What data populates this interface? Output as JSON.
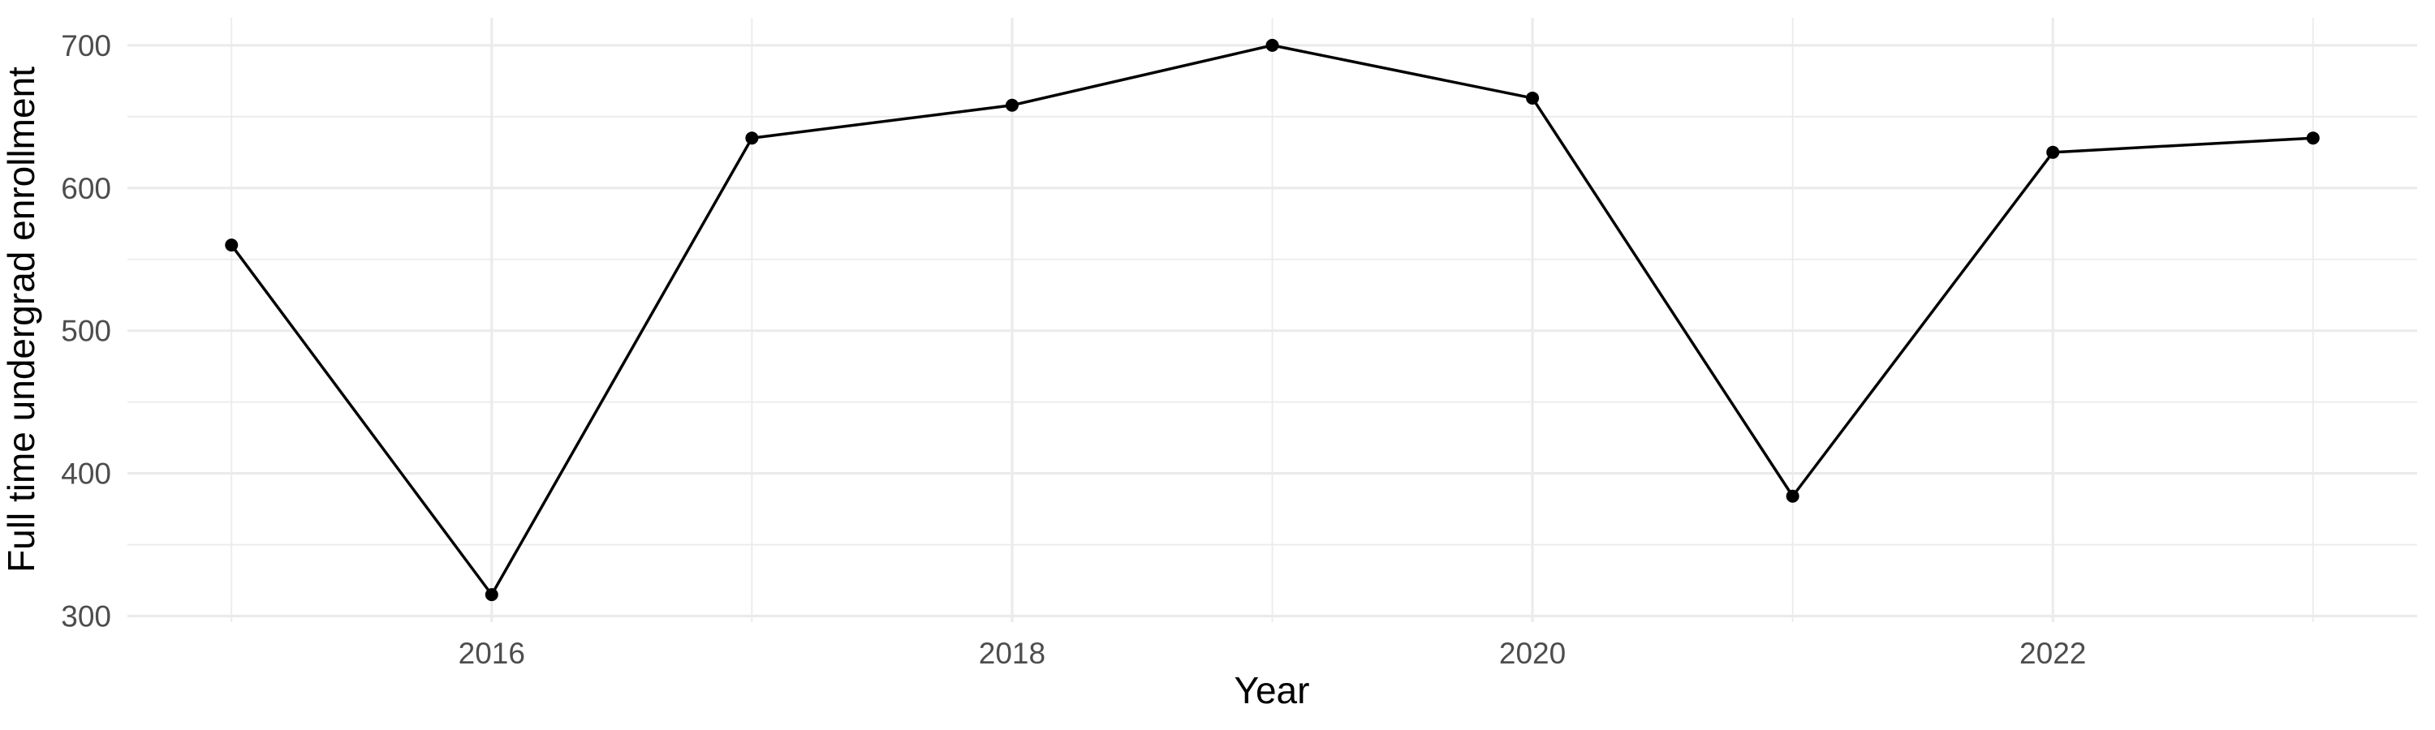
{
  "chart_data": {
    "type": "line",
    "title": "",
    "xlabel": "Year",
    "ylabel": "Full time undergrad enrollment",
    "x": [
      2015,
      2016,
      2017,
      2018,
      2019,
      2020,
      2021,
      2022,
      2023
    ],
    "values": [
      560,
      315,
      635,
      658,
      700,
      663,
      384,
      625,
      635
    ],
    "x_major_ticks": [
      2016,
      2018,
      2020,
      2022
    ],
    "x_tick_labels": [
      "2016",
      "2018",
      "2020",
      "2022"
    ],
    "x_minor_gridlines": [
      2015,
      2017,
      2019,
      2021,
      2023
    ],
    "y_major_ticks": [
      300,
      400,
      500,
      600,
      700
    ],
    "y_tick_labels": [
      "300",
      "400",
      "500",
      "600",
      "700"
    ],
    "y_minor_gridlines": [
      350,
      450,
      550,
      650
    ],
    "xlim": [
      2014.6,
      2023.4
    ],
    "ylim": [
      295.75,
      719.25
    ],
    "grid": true,
    "legend": false,
    "colors": {
      "background": "#FFFFFF",
      "gridline": "#EBEBEB",
      "tick_label": "#4D4D4D",
      "axis_title": "#000000",
      "line": "#000000",
      "point": "#000000"
    }
  }
}
